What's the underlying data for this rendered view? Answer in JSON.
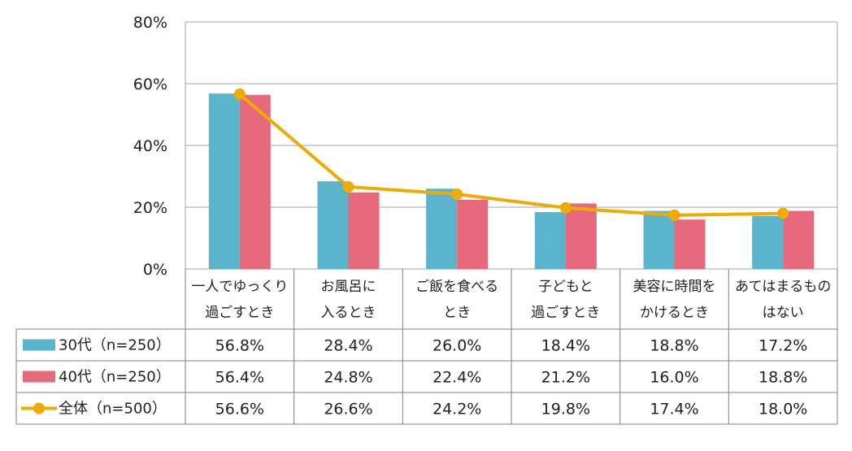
{
  "chart_data": {
    "type": "bar",
    "categories": [
      [
        "一人でゆっくり",
        "過ごすとき"
      ],
      [
        "お風呂に",
        "入るとき"
      ],
      [
        "ご飯を食べる",
        "とき"
      ],
      [
        "子どもと",
        "過ごすとき"
      ],
      [
        "美容に時間を",
        "かけるとき"
      ],
      [
        "あてはまるもの",
        "はない"
      ]
    ],
    "ylim": [
      0,
      80
    ],
    "yticks": [
      "0%",
      "20%",
      "40%",
      "60%",
      "80%"
    ],
    "ytick_values": [
      0,
      20,
      40,
      60,
      80
    ],
    "grid": true,
    "series": [
      {
        "name": "30代（n=250）",
        "kind": "bar",
        "color": "#5AB4CB",
        "values": [
          56.8,
          28.4,
          26.0,
          18.4,
          18.8,
          17.2
        ],
        "labels": [
          "56.8%",
          "28.4%",
          "26.0%",
          "18.4%",
          "18.8%",
          "17.2%"
        ]
      },
      {
        "name": "40代（n=250）",
        "kind": "bar",
        "color": "#E6697D",
        "values": [
          56.4,
          24.8,
          22.4,
          21.2,
          16.0,
          18.8
        ],
        "labels": [
          "56.4%",
          "24.8%",
          "22.4%",
          "21.2%",
          "16.0%",
          "18.8%"
        ]
      },
      {
        "name": "全体（n=500）",
        "kind": "line",
        "color": "#F0AB00",
        "values": [
          56.6,
          26.6,
          24.2,
          19.8,
          17.4,
          18.0
        ],
        "labels": [
          "56.6%",
          "26.6%",
          "24.2%",
          "19.8%",
          "17.4%",
          "18.0%"
        ]
      }
    ]
  }
}
